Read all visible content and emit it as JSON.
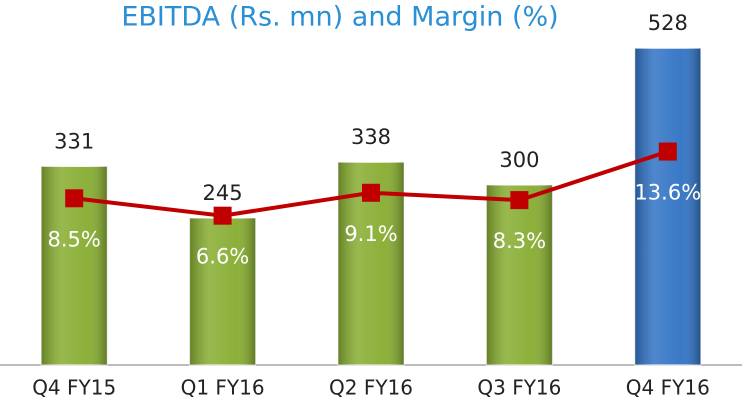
{
  "chart_data": {
    "type": "bar",
    "title": "EBITDA (Rs. mn) and Margin (%)",
    "categories": [
      "Q4 FY15",
      "Q1 FY16",
      "Q2 FY16",
      "Q3 FY16",
      "Q4 FY16"
    ],
    "values": [
      331,
      245,
      338,
      300,
      528
    ],
    "colors": [
      "#86ac2f",
      "#86ac2f",
      "#86ac2f",
      "#86ac2f",
      "#2f72c4"
    ],
    "ylim": [
      0,
      600
    ],
    "y2lim": [
      -9.7,
      29.6
    ],
    "line": {
      "type": "line",
      "axis": "y2",
      "color": "#c00000",
      "values": [
        8.5,
        6.6,
        9.1,
        8.3,
        13.6
      ],
      "value_labels": [
        "8.5%",
        "6.6%",
        "9.1%",
        "8.3%",
        "13.6%"
      ]
    }
  }
}
